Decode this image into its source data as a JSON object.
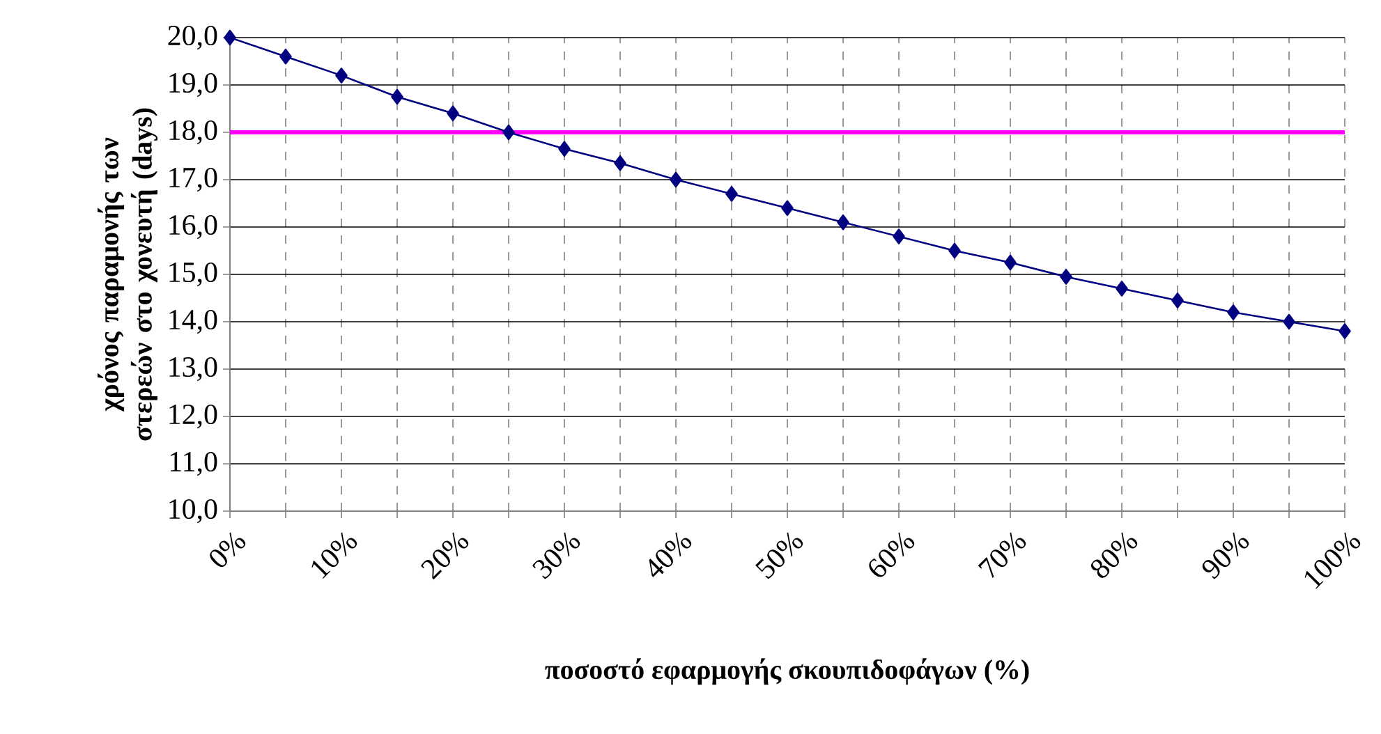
{
  "chart_data": {
    "type": "line",
    "xlabel": "ποσοστό εφαρμογής σκουπιδοφάγων (%)",
    "ylabel": "χρόνος παραμονής των στερεών στο χονευτή (days)",
    "categories": [
      "0%",
      null,
      "10%",
      null,
      "20%",
      null,
      "30%",
      null,
      "40%",
      null,
      "50%",
      null,
      "60%",
      null,
      "70%",
      null,
      "80%",
      null,
      "90%",
      null,
      "100%"
    ],
    "series": [
      {
        "color": "#000080",
        "values": [
          20.0,
          19.6,
          19.2,
          18.75,
          18.4,
          18.0,
          17.65,
          17.35,
          17.0,
          16.7,
          16.4,
          16.1,
          15.8,
          15.5,
          15.25,
          14.95,
          14.7,
          14.45,
          14.2,
          14.0,
          13.8
        ]
      }
    ],
    "ylim": [
      10,
      20
    ],
    "yticks": [
      {
        "value": 10,
        "label": "10,0"
      },
      {
        "value": 11,
        "label": "11,0"
      },
      {
        "value": 12,
        "label": "12,0"
      },
      {
        "value": 13,
        "label": "13,0"
      },
      {
        "value": 14,
        "label": "14,0"
      },
      {
        "value": 15,
        "label": "15,0"
      },
      {
        "value": 16,
        "label": "16,0"
      },
      {
        "value": 17,
        "label": "17,0"
      },
      {
        "value": 18,
        "label": "18,0"
      },
      {
        "value": 19,
        "label": "19,0"
      },
      {
        "value": 20,
        "label": "20,0"
      }
    ],
    "ref_lines": [
      {
        "axis": "y",
        "value": 18,
        "color": "#ff00ff"
      }
    ],
    "grid": true,
    "marker": "diamond",
    "line_style": "solid"
  }
}
